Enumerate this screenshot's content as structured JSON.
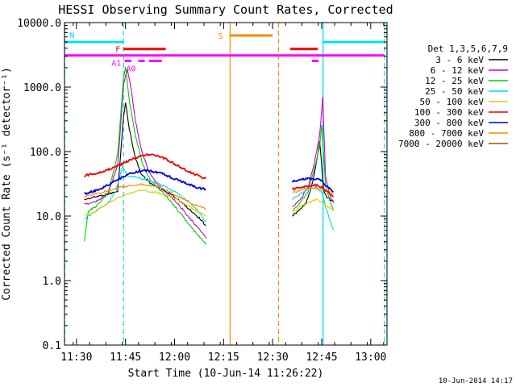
{
  "footer_timestamp": "10-Jun-2014 14:17",
  "chart_data": {
    "type": "line",
    "title": "HESSI Observing Summary Count Rates, Corrected",
    "xlabel": "Start Time (10-Jun-14 11:26:22)",
    "ylabel": "Corrected Count Rate (s⁻¹ detector⁻¹)",
    "ylog": true,
    "xlim": [
      11.439,
      13.083
    ],
    "ylim": [
      0.1,
      10000
    ],
    "x_tick_labels": [
      "11:30",
      "11:45",
      "12:00",
      "12:15",
      "12:30",
      "12:45",
      "13:00"
    ],
    "x_ticks": [
      11.5,
      11.75,
      12.0,
      12.25,
      12.5,
      12.75,
      13.0
    ],
    "y_tick_labels": [
      "0.1",
      "1.0",
      "10.0",
      "100.0",
      "1000.0",
      "10000.0"
    ],
    "y_ticks": [
      0.1,
      1,
      10,
      100,
      1000,
      10000
    ],
    "legend_title": "Det 1,3,5,6,7,9",
    "legend_position": "right",
    "series": [
      {
        "name": "3 - 6 keV",
        "color": "#000000",
        "segments": [
          [
            [
              11.54,
              18
            ],
            [
              11.6,
              20
            ],
            [
              11.66,
              22
            ],
            [
              11.71,
              24
            ],
            [
              11.74,
              350
            ],
            [
              11.75,
              580
            ],
            [
              11.77,
              220
            ],
            [
              11.8,
              80
            ],
            [
              11.83,
              45
            ],
            [
              11.88,
              32
            ],
            [
              11.93,
              26
            ],
            [
              11.98,
              22
            ],
            [
              12.02,
              18
            ],
            [
              12.06,
              14
            ],
            [
              12.1,
              11
            ],
            [
              12.14,
              8.5
            ],
            [
              12.16,
              7
            ]
          ],
          [
            [
              12.6,
              10
            ],
            [
              12.63,
              12
            ],
            [
              12.67,
              16
            ],
            [
              12.7,
              30
            ],
            [
              12.72,
              60
            ],
            [
              12.74,
              140
            ],
            [
              12.76,
              25
            ],
            [
              12.78,
              19
            ],
            [
              12.81,
              17
            ]
          ]
        ]
      },
      {
        "name": "6 - 12 keV",
        "color": "#cc00cc",
        "segments": [
          [
            [
              11.54,
              15
            ],
            [
              11.6,
              17
            ],
            [
              11.66,
              22
            ],
            [
              11.71,
              60
            ],
            [
              11.74,
              1100
            ],
            [
              11.76,
              1900
            ],
            [
              11.78,
              900
            ],
            [
              11.8,
              300
            ],
            [
              11.83,
              110
            ],
            [
              11.87,
              48
            ],
            [
              11.92,
              30
            ],
            [
              11.97,
              22
            ],
            [
              12.02,
              15
            ],
            [
              12.07,
              10
            ],
            [
              12.11,
              7
            ],
            [
              12.15,
              5.2
            ],
            [
              12.16,
              4.5
            ]
          ],
          [
            [
              12.6,
              14
            ],
            [
              12.64,
              18
            ],
            [
              12.68,
              28
            ],
            [
              12.71,
              60
            ],
            [
              12.74,
              180
            ],
            [
              12.755,
              700
            ],
            [
              12.77,
              40
            ],
            [
              12.79,
              22
            ],
            [
              12.81,
              16
            ]
          ]
        ]
      },
      {
        "name": "12 - 25 keV",
        "color": "#00cc00",
        "segments": [
          [
            [
              11.54,
              4
            ],
            [
              11.56,
              12
            ],
            [
              11.6,
              14
            ],
            [
              11.66,
              22
            ],
            [
              11.71,
              90
            ],
            [
              11.74,
              1400
            ],
            [
              11.75,
              2000
            ],
            [
              11.77,
              600
            ],
            [
              11.8,
              180
            ],
            [
              11.84,
              60
            ],
            [
              11.88,
              35
            ],
            [
              11.93,
              25
            ],
            [
              11.98,
              17
            ],
            [
              12.03,
              11
            ],
            [
              12.08,
              7
            ],
            [
              12.12,
              5
            ],
            [
              12.15,
              4
            ],
            [
              12.16,
              3.6
            ]
          ],
          [
            [
              12.6,
              12
            ],
            [
              12.64,
              16
            ],
            [
              12.68,
              24
            ],
            [
              12.71,
              50
            ],
            [
              12.74,
              120
            ],
            [
              12.75,
              260
            ],
            [
              12.77,
              30
            ],
            [
              12.79,
              18
            ],
            [
              12.81,
              12
            ]
          ]
        ]
      },
      {
        "name": "25 - 50 keV",
        "color": "#00dddd",
        "segments": [
          [
            [
              11.54,
              9
            ],
            [
              11.6,
              12
            ],
            [
              11.66,
              16
            ],
            [
              11.7,
              24
            ],
            [
              11.735,
              60
            ],
            [
              11.76,
              42
            ],
            [
              11.8,
              40
            ],
            [
              11.85,
              37
            ],
            [
              11.9,
              33
            ],
            [
              11.96,
              28
            ],
            [
              12.02,
              22
            ],
            [
              12.08,
              16
            ],
            [
              12.12,
              12
            ],
            [
              12.15,
              9
            ],
            [
              12.16,
              8
            ]
          ],
          [
            [
              12.6,
              18
            ],
            [
              12.64,
              22
            ],
            [
              12.68,
              26
            ],
            [
              12.72,
              28
            ],
            [
              12.75,
              24
            ],
            [
              12.77,
              14
            ],
            [
              12.79,
              9
            ],
            [
              12.81,
              6
            ]
          ]
        ]
      },
      {
        "name": "50 - 100 keV",
        "color": "#ddcc00",
        "segments": [
          [
            [
              11.54,
              10
            ],
            [
              11.6,
              12
            ],
            [
              11.66,
              16
            ],
            [
              11.72,
              20
            ],
            [
              11.76,
              22
            ],
            [
              11.82,
              25
            ],
            [
              11.88,
              24
            ],
            [
              11.94,
              22
            ],
            [
              12.0,
              19
            ],
            [
              12.06,
              15
            ],
            [
              12.11,
              12
            ],
            [
              12.16,
              10
            ]
          ],
          [
            [
              12.6,
              11
            ],
            [
              12.64,
              14
            ],
            [
              12.68,
              16
            ],
            [
              12.72,
              18
            ],
            [
              12.75,
              17
            ],
            [
              12.78,
              14
            ],
            [
              12.81,
              12
            ]
          ]
        ]
      },
      {
        "name": "100 - 300 keV",
        "color": "#ee0000",
        "segments": [
          [
            [
              11.54,
              42
            ],
            [
              11.6,
              46
            ],
            [
              11.66,
              52
            ],
            [
              11.72,
              62
            ],
            [
              11.78,
              76
            ],
            [
              11.84,
              88
            ],
            [
              11.88,
              90
            ],
            [
              11.92,
              85
            ],
            [
              11.98,
              70
            ],
            [
              12.04,
              55
            ],
            [
              12.09,
              46
            ],
            [
              12.14,
              40
            ],
            [
              12.16,
              38
            ]
          ],
          [
            [
              12.6,
              26
            ],
            [
              12.64,
              28
            ],
            [
              12.68,
              29
            ],
            [
              12.72,
              30
            ],
            [
              12.76,
              27
            ],
            [
              12.79,
              22
            ],
            [
              12.81,
              20
            ]
          ]
        ]
      },
      {
        "name": "300 - 800 keV",
        "color": "#0000dd",
        "segments": [
          [
            [
              11.54,
              22
            ],
            [
              11.6,
              25
            ],
            [
              11.66,
              30
            ],
            [
              11.72,
              38
            ],
            [
              11.78,
              46
            ],
            [
              11.84,
              51
            ],
            [
              11.88,
              50
            ],
            [
              11.94,
              45
            ],
            [
              12.0,
              38
            ],
            [
              12.06,
              32
            ],
            [
              12.11,
              28
            ],
            [
              12.16,
              26
            ]
          ],
          [
            [
              12.6,
              34
            ],
            [
              12.64,
              37
            ],
            [
              12.68,
              38
            ],
            [
              12.72,
              38
            ],
            [
              12.75,
              36
            ],
            [
              12.77,
              30
            ],
            [
              12.79,
              27
            ],
            [
              12.81,
              24
            ]
          ]
        ]
      },
      {
        "name": "800 - 7000 keV",
        "color": "#ff8800",
        "segments": [
          [
            [
              11.54,
              20
            ],
            [
              11.6,
              22
            ],
            [
              11.66,
              25
            ],
            [
              11.72,
              28
            ],
            [
              11.78,
              30
            ],
            [
              11.84,
              31
            ],
            [
              11.9,
              29
            ],
            [
              11.96,
              25
            ],
            [
              12.02,
              20
            ],
            [
              12.08,
              16
            ],
            [
              12.13,
              14
            ],
            [
              12.16,
              13
            ]
          ],
          [
            [
              12.6,
              23
            ],
            [
              12.64,
              25
            ],
            [
              12.68,
              27
            ],
            [
              12.72,
              27
            ],
            [
              12.76,
              26
            ],
            [
              12.79,
              24
            ],
            [
              12.81,
              22
            ]
          ]
        ]
      },
      {
        "name": "7000 - 20000 keV",
        "color": "#a05000",
        "segments": []
      }
    ],
    "flag_bars": [
      {
        "label": "N",
        "color": "#00e0f0",
        "y": 5000,
        "segments": [
          [
            11.44,
            11.74
          ],
          [
            12.757,
            13.07
          ]
        ]
      },
      {
        "label": "S",
        "color": "#ff8800",
        "y": 6300,
        "segments": [
          [
            12.28,
            12.5
          ]
        ]
      },
      {
        "label": "F",
        "color": "#ee0000",
        "y": 3900,
        "segments": [
          [
            11.74,
            11.955
          ],
          [
            12.59,
            12.73
          ]
        ]
      },
      {
        "label": "A1",
        "color": "#ff00ff",
        "y": 3100,
        "segments": [
          [
            11.44,
            13.07
          ]
        ]
      },
      {
        "label": "A0",
        "color": "#ff00ff",
        "y": 2550,
        "segments": [
          [
            11.745,
            11.78
          ],
          [
            11.815,
            11.845
          ],
          [
            11.87,
            11.935
          ],
          [
            12.7,
            12.735
          ]
        ]
      }
    ],
    "a0_marker": 11.845,
    "vertical_markers": [
      {
        "x": 11.44,
        "color": "#00e0f0",
        "style": "dashed"
      },
      {
        "x": 11.74,
        "color": "#00e0f0",
        "style": "dashed"
      },
      {
        "x": 12.757,
        "color": "#00e0f0",
        "style": "dashed"
      },
      {
        "x": 13.07,
        "color": "#00e0f0",
        "style": "dashed"
      },
      {
        "x": 12.283,
        "color": "#ff8800",
        "style": "solid"
      },
      {
        "x": 12.53,
        "color": "#ff8800",
        "style": "dashed"
      },
      {
        "x": 12.757,
        "color": "#00e0f0",
        "style": "solid"
      }
    ]
  }
}
